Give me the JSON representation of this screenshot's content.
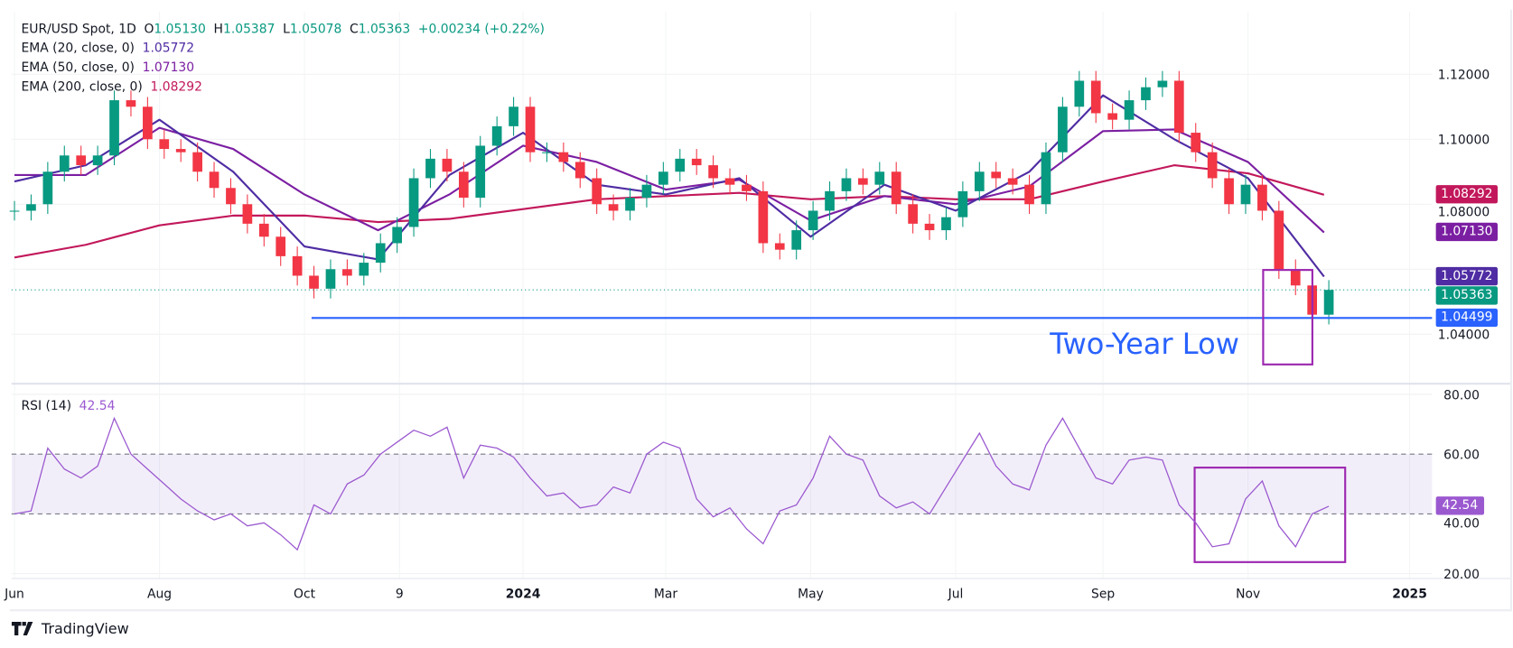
{
  "header": {
    "symbol": "EUR/USD Spot, 1D",
    "o_label": "O",
    "o": "1.05130",
    "h_label": "H",
    "h": "1.05387",
    "l_label": "L",
    "l": "1.05078",
    "c_label": "C",
    "c": "1.05363",
    "change": "+0.00234 (+0.22%)"
  },
  "indicators": {
    "ema20": {
      "label": "EMA (20, close, 0)",
      "value": "1.05772",
      "color": "#4f2ca3"
    },
    "ema50": {
      "label": "EMA (50, close, 0)",
      "value": "1.07130",
      "color": "#7b1fa2"
    },
    "ema200": {
      "label": "EMA (200, close, 0)",
      "value": "1.08292",
      "color": "#c2185b"
    },
    "rsi": {
      "label": "RSI (14)",
      "value": "42.54",
      "color": "#9b59d0"
    }
  },
  "price_axis": {
    "ticks": [
      "1.12000",
      "1.10000",
      "1.08000",
      "1.04000"
    ],
    "tags": [
      {
        "text": "1.08292",
        "price": 1.08292,
        "color": "#c2185b"
      },
      {
        "text": "1.07130",
        "price": 1.0713,
        "color": "#7b1fa2"
      },
      {
        "text": "1.05772",
        "price": 1.05772,
        "color": "#4f2ca3"
      },
      {
        "text": "1.05363",
        "price": 1.05363,
        "color": "#089981"
      },
      {
        "text": "1.04499",
        "price": 1.04499,
        "color": "#2962ff"
      }
    ]
  },
  "rsi_axis": {
    "ticks": [
      "80.00",
      "60.00",
      "40.00",
      "20.00"
    ],
    "tag": "42.54"
  },
  "time_axis": {
    "labels": [
      {
        "text": "Jun",
        "date": "2023-06-01",
        "bold": false
      },
      {
        "text": "Aug",
        "date": "2023-08-01",
        "bold": false
      },
      {
        "text": "Oct",
        "date": "2023-10-01",
        "bold": false
      },
      {
        "text": "9",
        "date": "2023-11-10",
        "bold": false
      },
      {
        "text": "2024",
        "date": "2024-01-01",
        "bold": true
      },
      {
        "text": "Mar",
        "date": "2024-03-01",
        "bold": false
      },
      {
        "text": "May",
        "date": "2024-05-01",
        "bold": false
      },
      {
        "text": "Jul",
        "date": "2024-07-01",
        "bold": false
      },
      {
        "text": "Sep",
        "date": "2024-09-01",
        "bold": false
      },
      {
        "text": "Nov",
        "date": "2024-11-01",
        "bold": false
      },
      {
        "text": "2025",
        "date": "2025-01-08",
        "bold": true
      }
    ]
  },
  "annotation": {
    "text": "Two-Year Low",
    "level": 1.04499,
    "color": "#2962ff",
    "box_color": "#9c27b0"
  },
  "brand": "TradingView",
  "chart_data": {
    "type": "candlestick",
    "title": "EUR/USD Spot, 1D",
    "ylim": [
      1.028,
      1.13
    ],
    "rsi_ylim": [
      18,
      82
    ],
    "grid": true,
    "candles": {
      "start": "2023-06-01",
      "interval_days": 7,
      "close": [
        1.078,
        1.08,
        1.09,
        1.095,
        1.092,
        1.095,
        1.112,
        1.11,
        1.1,
        1.097,
        1.096,
        1.09,
        1.085,
        1.08,
        1.074,
        1.07,
        1.064,
        1.058,
        1.054,
        1.06,
        1.058,
        1.062,
        1.068,
        1.073,
        1.088,
        1.094,
        1.09,
        1.082,
        1.098,
        1.104,
        1.11,
        1.096,
        1.096,
        1.093,
        1.088,
        1.08,
        1.078,
        1.082,
        1.086,
        1.09,
        1.094,
        1.092,
        1.088,
        1.086,
        1.084,
        1.068,
        1.066,
        1.072,
        1.078,
        1.084,
        1.088,
        1.086,
        1.09,
        1.08,
        1.074,
        1.072,
        1.076,
        1.084,
        1.09,
        1.088,
        1.086,
        1.08,
        1.096,
        1.11,
        1.118,
        1.108,
        1.106,
        1.112,
        1.116,
        1.118,
        1.102,
        1.096,
        1.088,
        1.08,
        1.086,
        1.078,
        1.06,
        1.055,
        1.046,
        1.05363
      ]
    },
    "series": [
      {
        "name": "EMA (20, close, 0)",
        "color": "#4f2ca3",
        "dates": [
          "2023-06-01",
          "2023-07-01",
          "2023-08-01",
          "2023-09-01",
          "2023-10-01",
          "2023-11-01",
          "2023-12-01",
          "2024-01-01",
          "2024-02-01",
          "2024-03-01",
          "2024-04-01",
          "2024-05-01",
          "2024-06-01",
          "2024-07-01",
          "2024-08-01",
          "2024-09-01",
          "2024-10-01",
          "2024-11-01",
          "2024-12-03"
        ],
        "values": [
          1.087,
          1.092,
          1.106,
          1.09,
          1.067,
          1.063,
          1.089,
          1.102,
          1.086,
          1.083,
          1.088,
          1.07,
          1.086,
          1.078,
          1.09,
          1.1135,
          1.1,
          1.088,
          1.05772
        ]
      },
      {
        "name": "EMA (50, close, 0)",
        "color": "#7b1fa2",
        "dates": [
          "2023-06-01",
          "2023-07-01",
          "2023-08-01",
          "2023-09-01",
          "2023-10-01",
          "2023-11-01",
          "2023-12-01",
          "2024-01-01",
          "2024-02-01",
          "2024-03-01",
          "2024-04-01",
          "2024-05-01",
          "2024-06-01",
          "2024-07-01",
          "2024-08-01",
          "2024-09-01",
          "2024-10-01",
          "2024-11-01",
          "2024-12-03"
        ],
        "values": [
          1.089,
          1.089,
          1.1035,
          1.097,
          1.083,
          1.072,
          1.083,
          1.098,
          1.093,
          1.0845,
          1.0875,
          1.075,
          1.0825,
          1.08,
          1.0855,
          1.1025,
          1.103,
          1.093,
          1.0713
        ]
      },
      {
        "name": "EMA (200, close, 0)",
        "color": "#c2185b",
        "dates": [
          "2023-06-01",
          "2023-07-01",
          "2023-08-01",
          "2023-09-01",
          "2023-10-01",
          "2023-11-01",
          "2023-12-01",
          "2024-01-01",
          "2024-02-01",
          "2024-03-01",
          "2024-04-01",
          "2024-05-01",
          "2024-06-01",
          "2024-07-01",
          "2024-08-01",
          "2024-09-01",
          "2024-10-01",
          "2024-11-01",
          "2024-12-03"
        ],
        "values": [
          1.0636,
          1.0675,
          1.0735,
          1.0765,
          1.0765,
          1.0745,
          1.0755,
          1.0785,
          1.0815,
          1.0825,
          1.0835,
          1.0815,
          1.0825,
          1.0815,
          1.0815,
          1.087,
          1.092,
          1.0895,
          1.08292
        ]
      }
    ],
    "rsi": {
      "name": "RSI (14)",
      "upper_band": 60,
      "lower_band": 40,
      "start": "2023-06-01",
      "interval_days": 7,
      "values": [
        40,
        41,
        62,
        55,
        52,
        56,
        72,
        60,
        55,
        50,
        45,
        41,
        38,
        40,
        36,
        37,
        33,
        28,
        43,
        40,
        50,
        53,
        60,
        64,
        68,
        66,
        69,
        52,
        63,
        62,
        59,
        52,
        46,
        47,
        42,
        43,
        49,
        47,
        60,
        64,
        62,
        45,
        39,
        42,
        35,
        30,
        41,
        43,
        52,
        66,
        60,
        58,
        46,
        42,
        44,
        40,
        49,
        58,
        67,
        56,
        50,
        48,
        63,
        72,
        62,
        52,
        50,
        58,
        59,
        58,
        43,
        37,
        29,
        30,
        45,
        51,
        36,
        29,
        40,
        42.54
      ]
    }
  }
}
